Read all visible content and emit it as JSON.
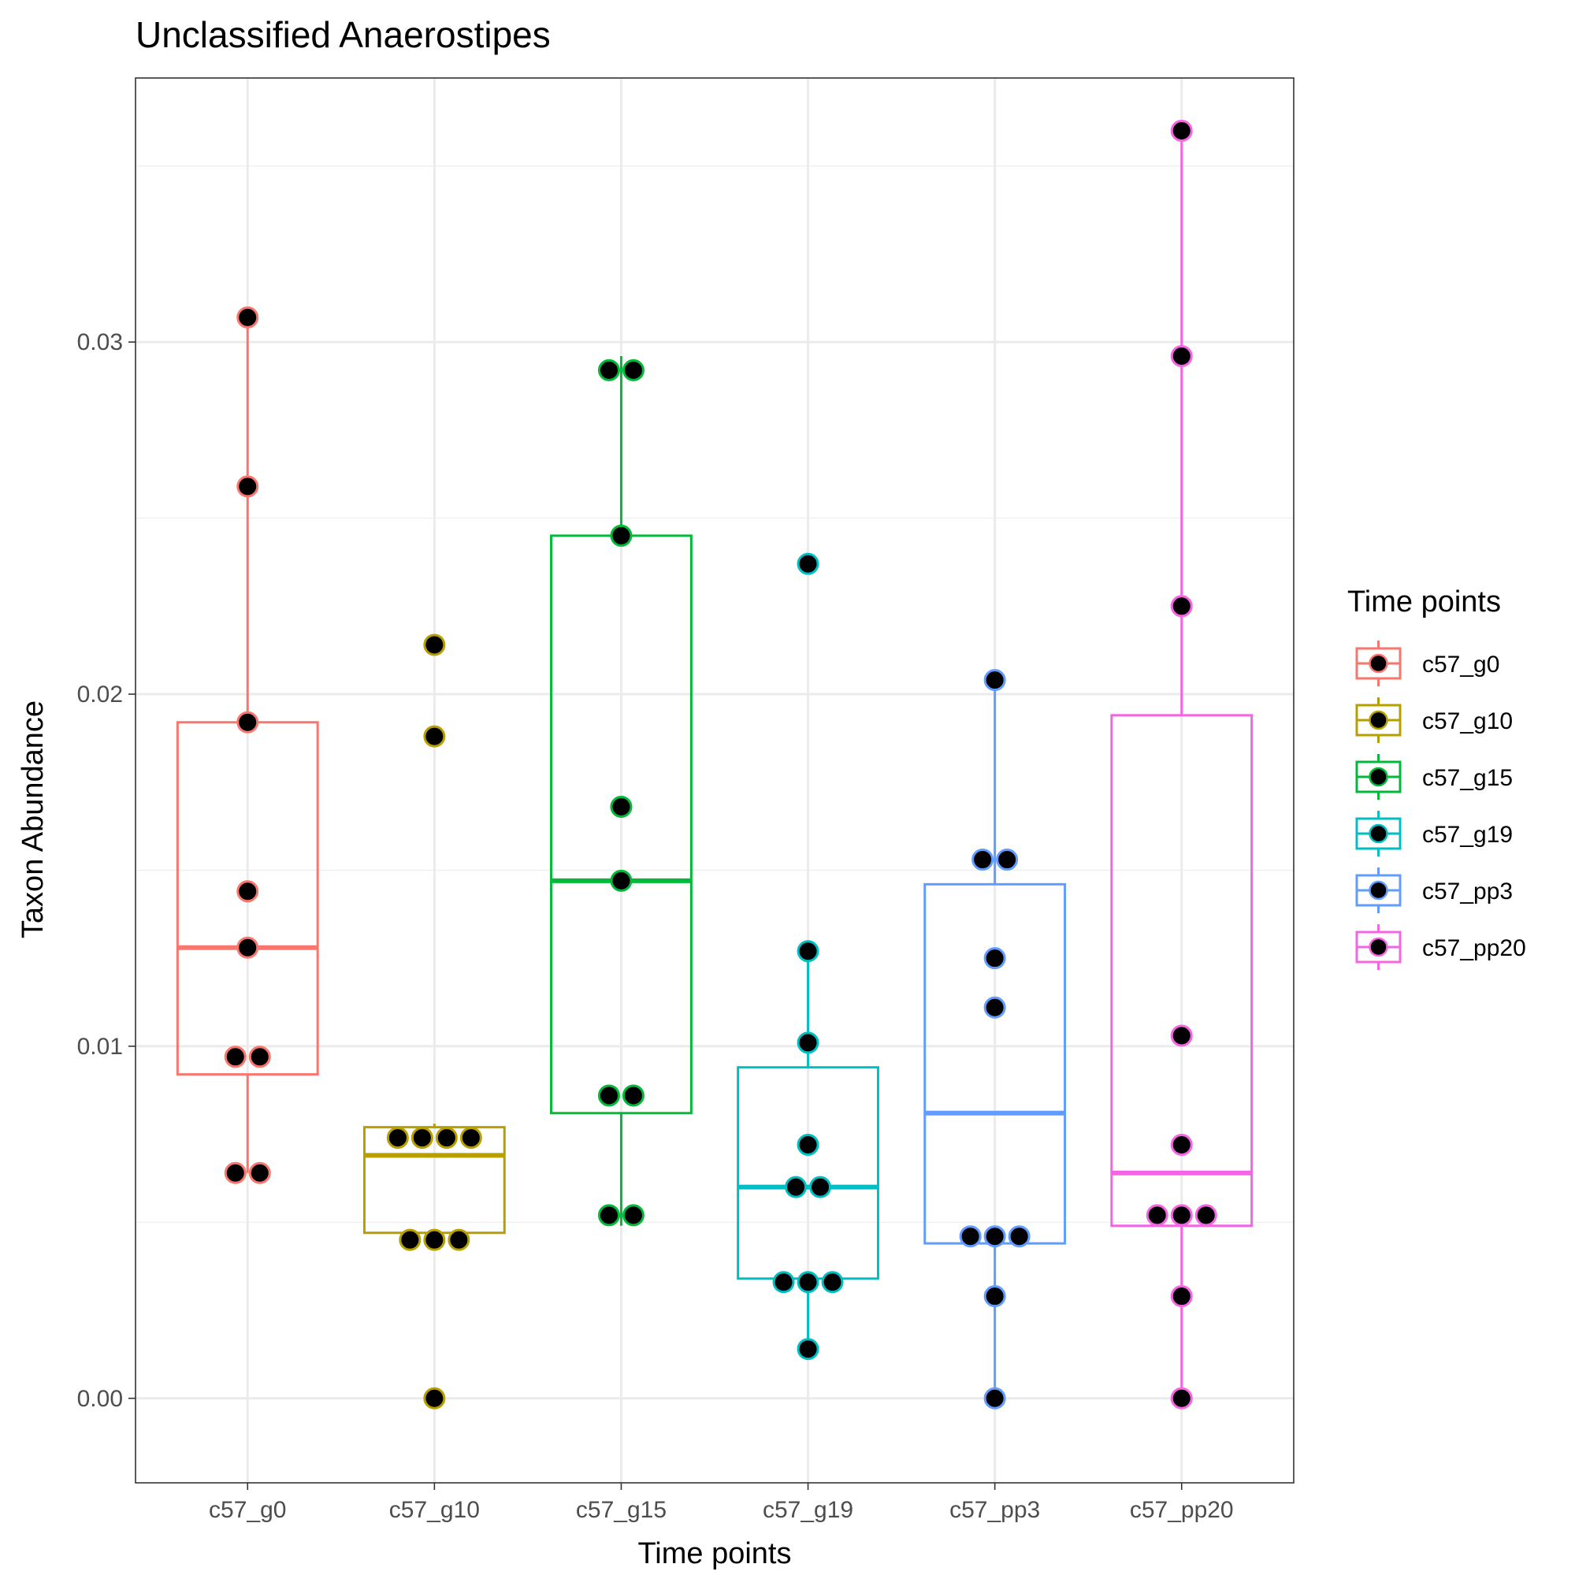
{
  "chart_data": {
    "type": "box",
    "title": "Unclassified  Anaerostipes",
    "xlabel": "Time points",
    "ylabel": "Taxon Abundance",
    "ylim": [
      -0.0024,
      0.0375
    ],
    "yticks": [
      0.0,
      0.01,
      0.02,
      0.03
    ],
    "ytick_labels": [
      "0.00",
      "0.01",
      "0.02",
      "0.03"
    ],
    "grid": true,
    "legend": {
      "title": "Time points",
      "placement": "right"
    },
    "categories": [
      "c57_g0",
      "c57_g10",
      "c57_g15",
      "c57_g19",
      "c57_pp3",
      "c57_pp20"
    ],
    "series": [
      {
        "name": "c57_g0",
        "color": "#F8766D",
        "box": {
          "whisker_low": 0.0064,
          "q1": 0.0092,
          "median": 0.0128,
          "q3": 0.0192,
          "whisker_high": 0.0307
        },
        "points": [
          0.0307,
          0.0259,
          0.0192,
          0.0144,
          0.0128,
          0.0097,
          0.0097,
          0.0064,
          0.0064
        ]
      },
      {
        "name": "c57_g10",
        "color": "#B79F00",
        "box": {
          "whisker_low": 0.0045,
          "q1": 0.0047,
          "median": 0.0069,
          "q3": 0.0077,
          "whisker_high": 0.0078
        },
        "points": [
          0.0214,
          0.0188,
          0.0074,
          0.0074,
          0.0074,
          0.0074,
          0.0045,
          0.0045,
          0.0045,
          0.0
        ]
      },
      {
        "name": "c57_g15",
        "color": "#00BA38",
        "box": {
          "whisker_low": 0.0049,
          "q1": 0.0081,
          "median": 0.0147,
          "q3": 0.0245,
          "whisker_high": 0.0296
        },
        "points": [
          0.0292,
          0.0292,
          0.0245,
          0.0168,
          0.0147,
          0.0086,
          0.0086,
          0.0052,
          0.0052
        ]
      },
      {
        "name": "c57_g19",
        "color": "#00BFC4",
        "box": {
          "whisker_low": 0.0014,
          "q1": 0.0034,
          "median": 0.006,
          "q3": 0.0094,
          "whisker_high": 0.0127
        },
        "points": [
          0.0237,
          0.0127,
          0.0101,
          0.0072,
          0.006,
          0.006,
          0.0033,
          0.0033,
          0.0033,
          0.0014
        ]
      },
      {
        "name": "c57_pp3",
        "color": "#619CFF",
        "box": {
          "whisker_low": 0.0,
          "q1": 0.0044,
          "median": 0.0081,
          "q3": 0.0146,
          "whisker_high": 0.0204
        },
        "points": [
          0.0204,
          0.0153,
          0.0153,
          0.0125,
          0.0111,
          0.0046,
          0.0046,
          0.0046,
          0.0029,
          0.0
        ]
      },
      {
        "name": "c57_pp20",
        "color": "#F564E3",
        "box": {
          "whisker_low": 0.0,
          "q1": 0.0049,
          "median": 0.0064,
          "q3": 0.0194,
          "whisker_high": 0.036
        },
        "points": [
          0.036,
          0.0296,
          0.0225,
          0.0103,
          0.0072,
          0.0052,
          0.0052,
          0.0052,
          0.0029,
          0.0
        ]
      }
    ]
  }
}
